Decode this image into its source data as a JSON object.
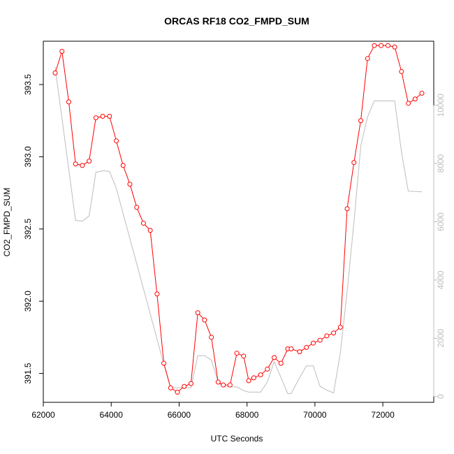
{
  "chart_data": {
    "type": "line",
    "title": "ORCAS RF18 CO2_FMPD_SUM",
    "xlabel": "UTC Seconds",
    "ylabel": "CO2_FMPD_SUM",
    "xlim": [
      62000,
      73500
    ],
    "ylim": [
      391.3,
      393.8
    ],
    "ylim_right": [
      -200,
      12200
    ],
    "x_ticks": [
      62000,
      64000,
      66000,
      68000,
      70000,
      72000
    ],
    "x_tick_labels": [
      "62000",
      "64000",
      "66000",
      "68000",
      "70000",
      "72000"
    ],
    "y_ticks": [
      391.5,
      392.0,
      392.5,
      393.0,
      393.5
    ],
    "y_tick_labels": [
      "391.5",
      "392.0",
      "392.5",
      "393.0",
      "393.5"
    ],
    "y_right_ticks": [
      0,
      2000,
      4000,
      6000,
      8000,
      10000
    ],
    "y_right_tick_labels": [
      "0",
      "2000",
      "4000",
      "6000",
      "8000",
      "10000"
    ],
    "grid": false,
    "colors": {
      "primary": "#ff0000",
      "secondary": "#bdbdbd"
    },
    "series": [
      {
        "axis": "left",
        "style": "line+points",
        "color": "#ff0000",
        "x": [
          62350,
          62550,
          62750,
          62950,
          63150,
          63350,
          63550,
          63750,
          63950,
          64150,
          64350,
          64550,
          64750,
          64950,
          65150,
          65350,
          65550,
          65750,
          65950,
          66150,
          66350,
          66550,
          66750,
          66950,
          67150,
          67300,
          67500,
          67700,
          67900,
          68050,
          68200,
          68400,
          68600,
          68800,
          69000,
          69200,
          69300,
          69550,
          69750,
          69950,
          70150,
          70350,
          70550,
          70750,
          70950,
          71150,
          71350,
          71550,
          71750,
          71950,
          72150,
          72350,
          72550,
          72750,
          72950,
          73150
        ],
        "y": [
          393.58,
          393.73,
          393.38,
          392.95,
          392.94,
          392.97,
          393.27,
          393.28,
          393.28,
          393.11,
          392.94,
          392.81,
          392.65,
          392.54,
          392.49,
          392.05,
          391.57,
          391.4,
          391.37,
          391.41,
          391.43,
          391.92,
          391.87,
          391.75,
          391.44,
          391.42,
          391.42,
          391.64,
          391.62,
          391.45,
          391.47,
          391.49,
          391.53,
          391.61,
          391.57,
          391.67,
          391.67,
          391.65,
          391.68,
          391.71,
          391.73,
          391.76,
          391.78,
          391.82,
          392.64,
          392.96,
          393.25,
          393.68,
          393.77,
          393.77,
          393.77,
          393.76,
          393.59,
          393.37,
          393.4,
          393.44
        ]
      },
      {
        "axis": "right",
        "style": "line",
        "color": "#bdbdbd",
        "x": [
          62350,
          62950,
          63150,
          63350,
          63550,
          63750,
          63950,
          64150,
          64950,
          65550,
          65750,
          66350,
          66550,
          66750,
          66950,
          67150,
          67300,
          67500,
          67700,
          67900,
          68050,
          68200,
          68400,
          68600,
          68800,
          69000,
          69200,
          69300,
          69550,
          69750,
          69950,
          70150,
          70350,
          70550,
          70750,
          70950,
          71150,
          71350,
          71550,
          71750,
          71950,
          72150,
          72350,
          72550,
          72750,
          72950,
          73150
        ],
        "y": [
          11300,
          6050,
          6020,
          6200,
          7700,
          7750,
          7730,
          7150,
          3700,
          1100,
          300,
          300,
          1400,
          1400,
          1250,
          500,
          330,
          330,
          330,
          200,
          150,
          150,
          150,
          500,
          1200,
          650,
          100,
          100,
          650,
          1050,
          1050,
          350,
          220,
          120,
          1500,
          3600,
          6000,
          8600,
          9600,
          10150,
          10150,
          10150,
          10150,
          8400,
          7050,
          7040,
          7030
        ]
      }
    ]
  }
}
